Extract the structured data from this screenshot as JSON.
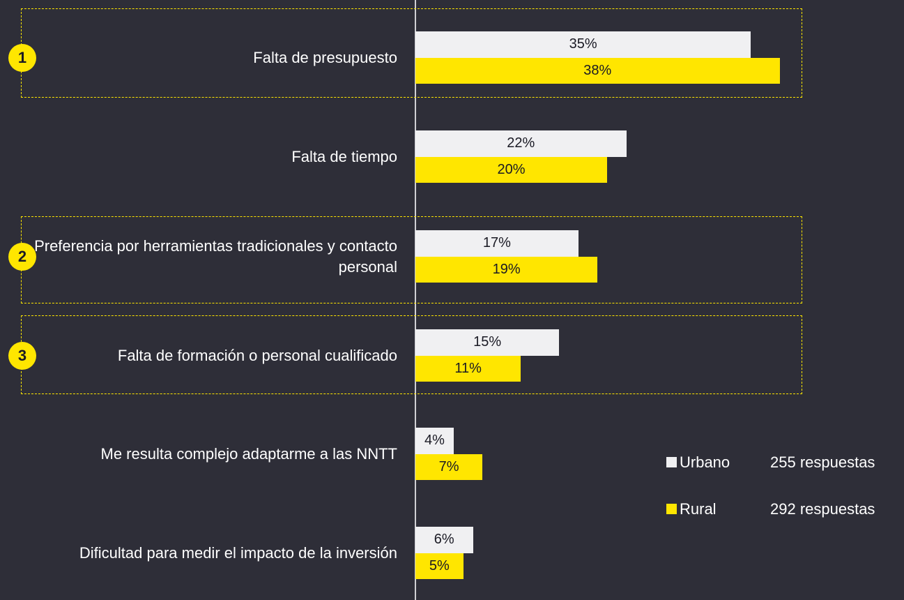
{
  "chart_data": {
    "type": "bar",
    "orientation": "horizontal",
    "categories": [
      "Falta de presupuesto",
      "Falta de tiempo",
      "Preferencia por herramientas tradicionales y contacto personal",
      "Falta de formación o personal cualificado",
      "Me resulta complejo adaptarme a las NNTT",
      "Dificultad para medir el impacto de la inversión"
    ],
    "series": [
      {
        "name": "Urbano",
        "note": "255 respuestas",
        "color": "#f0f0f2",
        "values": [
          35,
          22,
          17,
          15,
          4,
          6
        ],
        "value_labels": [
          "35%",
          "22%",
          "17%",
          "15%",
          "4%",
          "6%"
        ]
      },
      {
        "name": "Rural",
        "note": "292 respuestas",
        "color": "#ffe600",
        "values": [
          38,
          20,
          19,
          11,
          7,
          5
        ],
        "value_labels": [
          "38%",
          "20%",
          "19%",
          "11%",
          "7%",
          "5%"
        ]
      }
    ],
    "highlights": [
      {
        "label": "1",
        "category": 0
      },
      {
        "label": "2",
        "category": 2
      },
      {
        "label": "3",
        "category": 3
      }
    ]
  }
}
